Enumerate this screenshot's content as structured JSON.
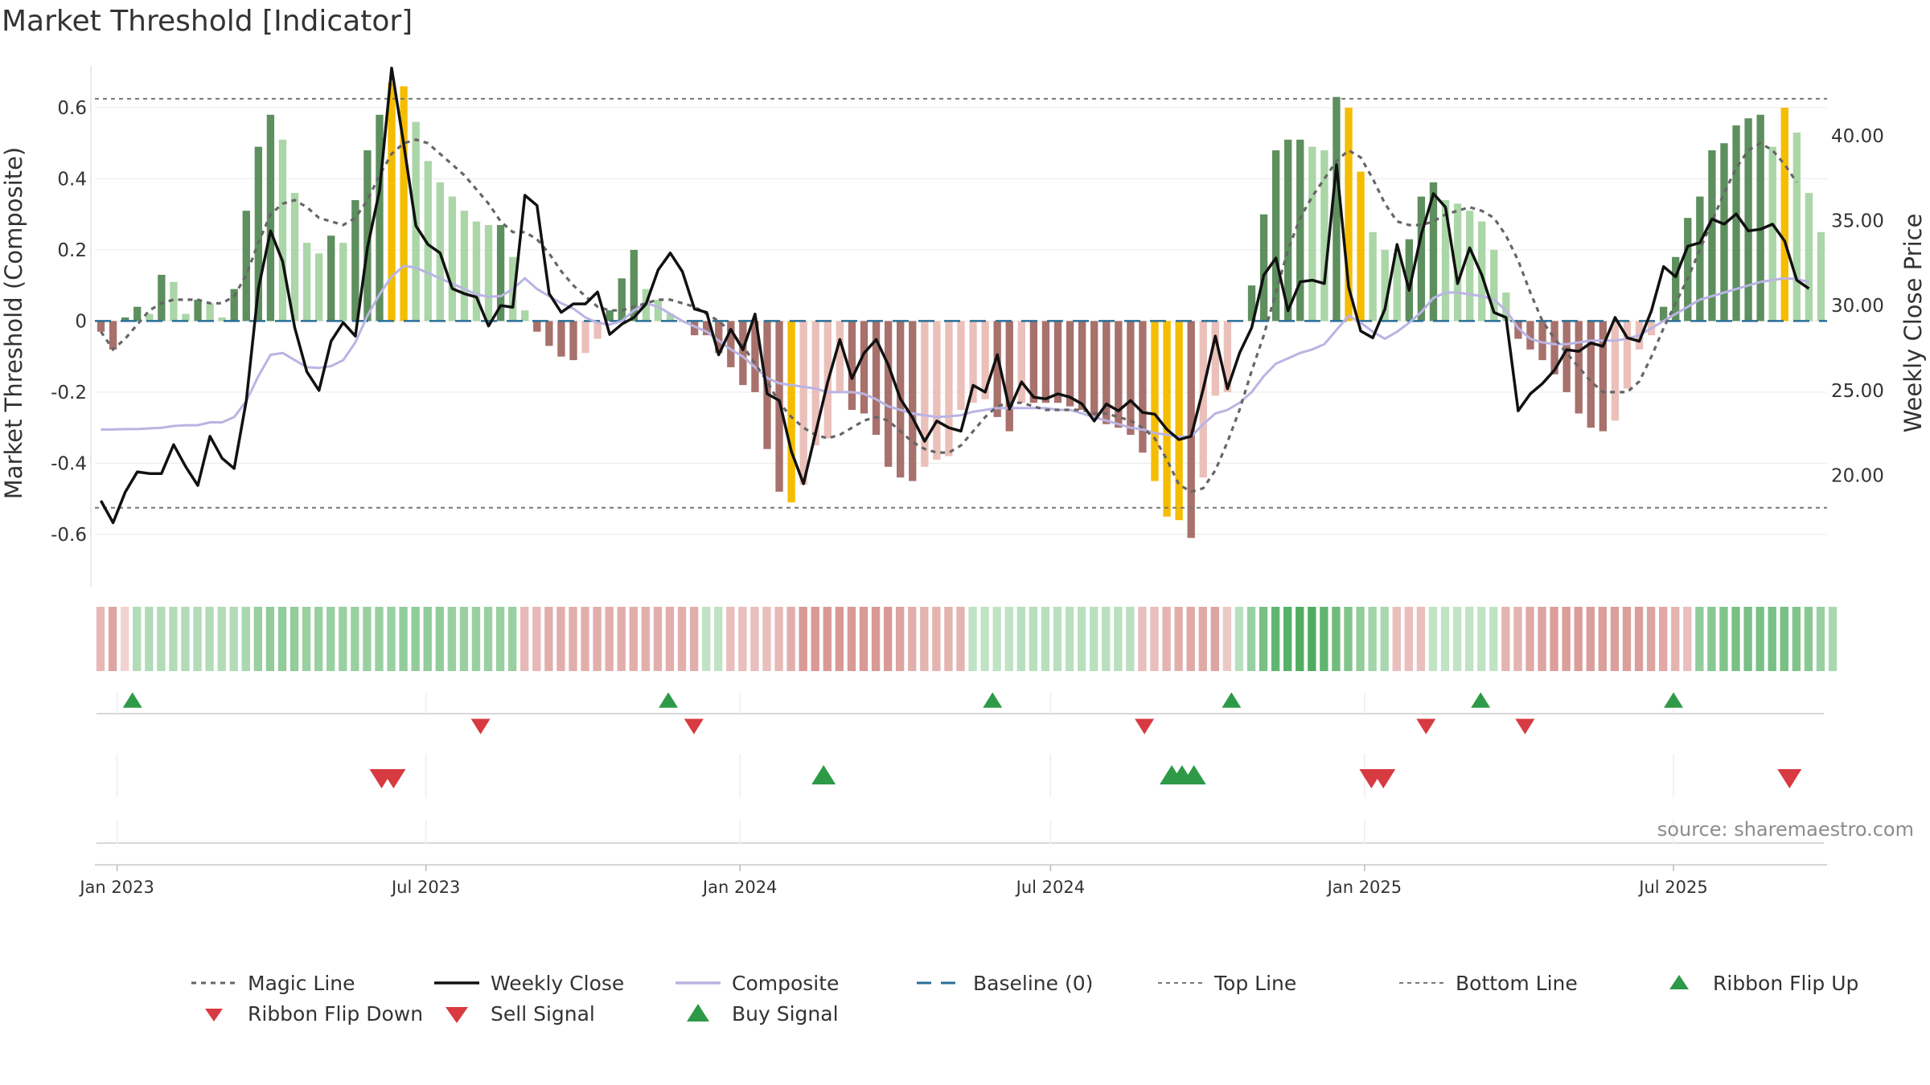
{
  "chart_data": {
    "type": "bar",
    "title": "Market Threshold [Indicator]",
    "ylabel": "Market Threshold (Composite)",
    "y2label": "Weekly Close Price",
    "source": "source: sharemaestro.com",
    "ylim": [
      -0.72,
      0.74
    ],
    "y2lim": [
      14.0,
      44.6
    ],
    "yticks": [
      "0.6",
      "0.4",
      "0.2",
      "0",
      "-0.2",
      "-0.4",
      "-0.6"
    ],
    "y2ticks": [
      "40.00",
      "35.00",
      "30.00",
      "25.00",
      "20.00"
    ],
    "x_start": "2022-12-19",
    "x_end": "2025-09-29",
    "xticks": [
      {
        "label": "Jan 2023",
        "date": "2023-01-01"
      },
      {
        "label": "Jul 2023",
        "date": "2023-07-01"
      },
      {
        "label": "Jan 2024",
        "date": "2024-01-01"
      },
      {
        "label": "Jul 2024",
        "date": "2024-07-01"
      },
      {
        "label": "Jan 2025",
        "date": "2025-01-01"
      },
      {
        "label": "Jul 2025",
        "date": "2025-07-01"
      }
    ],
    "grid": true,
    "top_line": 0.625,
    "bottom_line": -0.525,
    "composite_bars": [
      -0.03,
      -0.08,
      0.01,
      0.04,
      0.02,
      0.13,
      0.11,
      0.02,
      0.06,
      0.05,
      0.01,
      0.09,
      0.31,
      0.49,
      0.58,
      0.51,
      0.36,
      0.22,
      0.19,
      0.24,
      0.22,
      0.34,
      0.48,
      0.58,
      0.67,
      0.66,
      0.56,
      0.45,
      0.39,
      0.35,
      0.31,
      0.28,
      0.27,
      0.27,
      0.18,
      0.03,
      -0.03,
      -0.07,
      -0.1,
      -0.11,
      -0.09,
      -0.05,
      0.03,
      0.12,
      0.2,
      0.09,
      0.06,
      0.02,
      0.0,
      -0.04,
      -0.04,
      -0.09,
      -0.13,
      -0.18,
      -0.2,
      -0.36,
      -0.48,
      -0.51,
      -0.46,
      -0.35,
      -0.33,
      -0.2,
      -0.25,
      -0.26,
      -0.32,
      -0.41,
      -0.44,
      -0.45,
      -0.41,
      -0.39,
      -0.38,
      -0.25,
      -0.23,
      -0.22,
      -0.27,
      -0.31,
      -0.23,
      -0.23,
      -0.23,
      -0.23,
      -0.24,
      -0.25,
      -0.27,
      -0.29,
      -0.3,
      -0.32,
      -0.37,
      -0.45,
      -0.55,
      -0.56,
      -0.61,
      -0.44,
      -0.21,
      -0.2,
      0.0,
      0.1,
      0.3,
      0.48,
      0.51,
      0.51,
      0.49,
      0.48,
      0.63,
      0.6,
      0.42,
      0.25,
      0.2,
      0.19,
      0.23,
      0.35,
      0.39,
      0.34,
      0.33,
      0.31,
      0.28,
      0.2,
      0.08,
      -0.05,
      -0.08,
      -0.11,
      -0.15,
      -0.2,
      -0.26,
      -0.3,
      -0.31,
      -0.28,
      -0.19,
      -0.08,
      -0.04,
      0.04,
      0.18,
      0.29,
      0.35,
      0.48,
      0.5,
      0.55,
      0.57,
      0.58,
      0.49,
      0.6,
      0.53,
      0.36,
      0.25
    ],
    "highlight_bars": [
      24,
      25,
      57,
      87,
      88,
      89,
      103,
      104,
      139
    ],
    "weekly_close": [
      18.5,
      17.2,
      19.0,
      20.2,
      20.1,
      20.1,
      21.8,
      20.5,
      19.4,
      22.3,
      21.0,
      20.4,
      24.4,
      31.0,
      34.4,
      32.6,
      28.7,
      26.1,
      25.0,
      27.9,
      29.0,
      28.2,
      33.4,
      36.8,
      44.0,
      39.5,
      34.7,
      33.6,
      33.1,
      31.0,
      30.7,
      30.5,
      28.8,
      30.0,
      29.9,
      36.5,
      35.9,
      30.7,
      29.6,
      30.1,
      30.1,
      30.8,
      28.3,
      28.9,
      29.3,
      30.1,
      32.1,
      33.1,
      32.0,
      29.8,
      29.6,
      27.1,
      28.6,
      27.4,
      29.5,
      24.8,
      24.4,
      21.4,
      19.5,
      22.5,
      25.5,
      28.0,
      25.7,
      27.2,
      28.0,
      26.5,
      24.5,
      23.4,
      22.0,
      23.2,
      22.8,
      22.6,
      25.3,
      24.9,
      27.1,
      23.9,
      25.5,
      24.6,
      24.5,
      24.8,
      24.6,
      24.2,
      23.2,
      24.2,
      23.8,
      24.4,
      23.7,
      23.6,
      22.7,
      22.1,
      22.3,
      25.1,
      28.2,
      25.1,
      27.2,
      28.7,
      31.8,
      32.8,
      29.7,
      31.4,
      31.5,
      31.3,
      38.3,
      31.1,
      28.5,
      28.1,
      29.8,
      33.6,
      30.9,
      34.2,
      36.6,
      35.8,
      31.3,
      33.4,
      31.8,
      29.6,
      29.3,
      23.8,
      24.8,
      25.4,
      26.2,
      27.4,
      27.3,
      27.8,
      27.6,
      29.3,
      28.1,
      27.9,
      29.7,
      32.3,
      31.7,
      33.5,
      33.7,
      35.1,
      34.8,
      35.4,
      34.4,
      34.5,
      34.8,
      33.8,
      31.5,
      31.0
    ],
    "composite_line": [
      -0.305,
      -0.305,
      -0.304,
      -0.304,
      -0.302,
      -0.3,
      -0.295,
      -0.293,
      -0.293,
      -0.285,
      -0.285,
      -0.27,
      -0.225,
      -0.155,
      -0.095,
      -0.09,
      -0.11,
      -0.13,
      -0.132,
      -0.127,
      -0.11,
      -0.06,
      0.015,
      0.075,
      0.125,
      0.155,
      0.15,
      0.135,
      0.12,
      0.105,
      0.09,
      0.075,
      0.068,
      0.07,
      0.09,
      0.12,
      0.09,
      0.07,
      0.05,
      0.035,
      0.01,
      -0.005,
      -0.01,
      0.0,
      0.03,
      0.05,
      0.04,
      0.02,
      0.0,
      -0.015,
      -0.03,
      -0.055,
      -0.08,
      -0.1,
      -0.13,
      -0.16,
      -0.175,
      -0.18,
      -0.185,
      -0.19,
      -0.2,
      -0.2,
      -0.2,
      -0.205,
      -0.22,
      -0.24,
      -0.25,
      -0.26,
      -0.265,
      -0.27,
      -0.268,
      -0.265,
      -0.255,
      -0.25,
      -0.245,
      -0.245,
      -0.245,
      -0.245,
      -0.245,
      -0.25,
      -0.25,
      -0.26,
      -0.27,
      -0.28,
      -0.29,
      -0.3,
      -0.305,
      -0.315,
      -0.32,
      -0.325,
      -0.325,
      -0.29,
      -0.26,
      -0.25,
      -0.23,
      -0.2,
      -0.155,
      -0.12,
      -0.105,
      -0.09,
      -0.08,
      -0.065,
      -0.025,
      0.015,
      -0.005,
      -0.03,
      -0.05,
      -0.03,
      -0.005,
      0.025,
      0.065,
      0.08,
      0.08,
      0.075,
      0.07,
      0.06,
      0.03,
      -0.02,
      -0.05,
      -0.06,
      -0.065,
      -0.065,
      -0.06,
      -0.055,
      -0.055,
      -0.055,
      -0.05,
      -0.04,
      -0.02,
      0.0,
      0.02,
      0.04,
      0.06,
      0.07,
      0.08,
      0.09,
      0.1,
      0.11,
      0.115,
      0.12,
      0.118,
      0.11
    ],
    "magic_line": [
      -0.03,
      -0.08,
      -0.05,
      -0.01,
      0.03,
      0.05,
      0.06,
      0.06,
      0.06,
      0.05,
      0.05,
      0.07,
      0.13,
      0.22,
      0.3,
      0.33,
      0.34,
      0.32,
      0.29,
      0.28,
      0.27,
      0.29,
      0.34,
      0.41,
      0.47,
      0.5,
      0.51,
      0.5,
      0.47,
      0.44,
      0.41,
      0.37,
      0.33,
      0.28,
      0.25,
      0.25,
      0.23,
      0.19,
      0.14,
      0.1,
      0.07,
      0.04,
      0.03,
      0.03,
      0.04,
      0.05,
      0.06,
      0.06,
      0.05,
      0.04,
      0.02,
      0.0,
      -0.03,
      -0.07,
      -0.12,
      -0.17,
      -0.23,
      -0.27,
      -0.3,
      -0.32,
      -0.33,
      -0.32,
      -0.3,
      -0.28,
      -0.27,
      -0.28,
      -0.31,
      -0.34,
      -0.36,
      -0.37,
      -0.37,
      -0.35,
      -0.31,
      -0.27,
      -0.24,
      -0.23,
      -0.23,
      -0.24,
      -0.25,
      -0.25,
      -0.25,
      -0.25,
      -0.26,
      -0.26,
      -0.27,
      -0.28,
      -0.3,
      -0.33,
      -0.39,
      -0.46,
      -0.48,
      -0.47,
      -0.42,
      -0.34,
      -0.25,
      -0.14,
      -0.04,
      0.08,
      0.2,
      0.29,
      0.35,
      0.4,
      0.45,
      0.48,
      0.46,
      0.4,
      0.33,
      0.28,
      0.27,
      0.27,
      0.28,
      0.3,
      0.31,
      0.32,
      0.31,
      0.29,
      0.24,
      0.17,
      0.08,
      0.0,
      -0.05,
      -0.09,
      -0.13,
      -0.17,
      -0.2,
      -0.2,
      -0.2,
      -0.17,
      -0.1,
      -0.02,
      0.05,
      0.12,
      0.2,
      0.28,
      0.36,
      0.43,
      0.48,
      0.5,
      0.48,
      0.44,
      0.39
    ],
    "ribbon_intensity": [
      -0.35,
      -0.55,
      -0.1,
      0.3,
      0.3,
      0.3,
      0.3,
      0.3,
      0.3,
      0.3,
      0.3,
      0.3,
      0.35,
      0.45,
      0.5,
      0.5,
      0.5,
      0.45,
      0.45,
      0.45,
      0.45,
      0.45,
      0.45,
      0.45,
      0.45,
      0.5,
      0.5,
      0.5,
      0.5,
      0.45,
      0.45,
      0.45,
      0.45,
      0.45,
      0.45,
      -0.35,
      -0.35,
      -0.45,
      -0.45,
      -0.45,
      -0.45,
      -0.45,
      -0.45,
      -0.45,
      -0.45,
      -0.45,
      -0.45,
      -0.45,
      -0.45,
      -0.45,
      0.2,
      0.2,
      -0.3,
      -0.3,
      -0.3,
      -0.3,
      -0.35,
      -0.45,
      -0.65,
      -0.65,
      -0.65,
      -0.65,
      -0.65,
      -0.65,
      -0.65,
      -0.65,
      -0.55,
      -0.45,
      -0.4,
      -0.4,
      -0.4,
      -0.4,
      0.2,
      0.2,
      0.2,
      0.2,
      0.25,
      0.25,
      0.25,
      0.25,
      0.25,
      0.25,
      0.25,
      0.25,
      0.25,
      0.25,
      -0.3,
      -0.3,
      -0.4,
      -0.45,
      -0.5,
      -0.5,
      -0.55,
      -0.2,
      0.25,
      0.45,
      0.65,
      0.8,
      0.85,
      0.9,
      0.9,
      0.8,
      0.7,
      0.6,
      0.5,
      0.4,
      0.35,
      -0.3,
      -0.3,
      -0.3,
      0.2,
      0.2,
      0.2,
      0.2,
      0.2,
      0.2,
      -0.4,
      -0.4,
      -0.5,
      -0.55,
      -0.6,
      -0.6,
      -0.6,
      -0.6,
      -0.6,
      -0.6,
      -0.6,
      -0.6,
      -0.55,
      -0.5,
      -0.4,
      -0.3,
      0.5,
      0.55,
      0.6,
      0.65,
      0.65,
      0.65,
      0.65,
      0.65,
      0.6,
      0.55,
      0.45,
      0.35
    ],
    "ribbon_flip_up": [
      "2023-01-10",
      "2023-11-20",
      "2024-05-28",
      "2024-10-15",
      "2025-03-10",
      "2025-07-01"
    ],
    "ribbon_flip_down": [
      "2023-08-02",
      "2023-12-05",
      "2024-08-25",
      "2025-02-06",
      "2025-04-05"
    ],
    "buy_signal": [
      "2024-02-19",
      "2024-09-10",
      "2024-09-16",
      "2024-09-23"
    ],
    "sell_signal": [
      "2023-06-05",
      "2023-06-12",
      "2025-01-05",
      "2025-01-12",
      "2025-09-07"
    ],
    "legend": [
      "Magic Line",
      "Weekly Close",
      "Composite",
      "Baseline (0)",
      "Top Line",
      "Bottom Line",
      "Ribbon Flip Up",
      "Ribbon Flip Down",
      "Sell Signal",
      "Buy Signal"
    ],
    "colors": {
      "bar_strong_up": "#5e8f5e",
      "bar_weak_up": "#abd6a7",
      "bar_strong_down": "#a8716c",
      "bar_weak_down": "#ebc0ba",
      "highlight": "#f5bd00",
      "weekly_close": "#111111",
      "composite": "#bab4e3",
      "magic": "#666666",
      "baseline": "#2a6f97",
      "threshold": "#777777",
      "up_marker": "#2e9a48",
      "down_marker": "#d83a41"
    }
  }
}
